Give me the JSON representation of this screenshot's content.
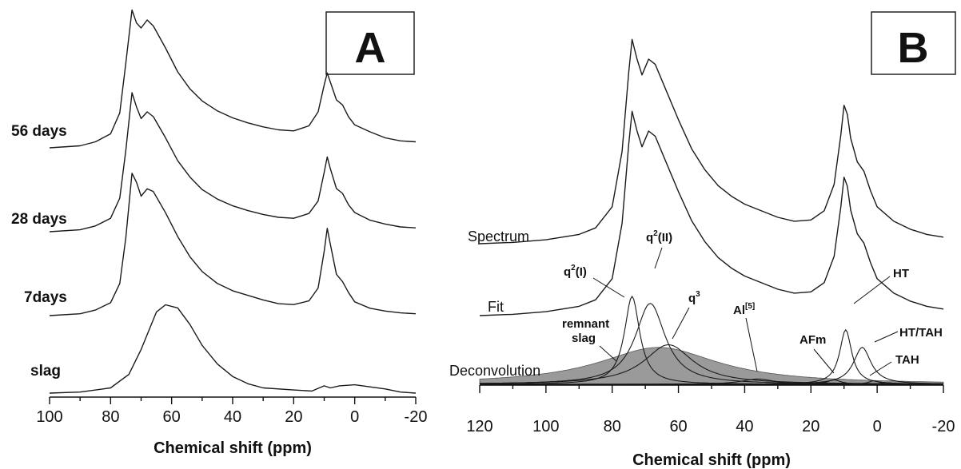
{
  "chart_data": [
    {
      "panel": "A",
      "type": "line",
      "xlabel": "Chemical shift (ppm)",
      "xlim": [
        100,
        -20
      ],
      "xticks": [
        100,
        80,
        60,
        40,
        20,
        0,
        -20
      ],
      "series": [
        {
          "name": "slag",
          "points": [
            [
              100,
              0.0
            ],
            [
              90,
              0.01
            ],
            [
              80,
              0.05
            ],
            [
              74,
              0.18
            ],
            [
              70,
              0.42
            ],
            [
              65,
              0.78
            ],
            [
              62,
              0.85
            ],
            [
              58,
              0.82
            ],
            [
              54,
              0.66
            ],
            [
              50,
              0.46
            ],
            [
              45,
              0.28
            ],
            [
              40,
              0.16
            ],
            [
              35,
              0.09
            ],
            [
              30,
              0.05
            ],
            [
              20,
              0.03
            ],
            [
              14,
              0.02
            ],
            [
              10,
              0.07
            ],
            [
              8,
              0.05
            ],
            [
              5,
              0.07
            ],
            [
              0,
              0.08
            ],
            [
              -5,
              0.06
            ],
            [
              -10,
              0.04
            ],
            [
              -15,
              0.01
            ],
            [
              -20,
              0.0
            ]
          ]
        },
        {
          "name": "7days",
          "points": [
            [
              100,
              0.0
            ],
            [
              90,
              0.02
            ],
            [
              85,
              0.06
            ],
            [
              80,
              0.14
            ],
            [
              77,
              0.35
            ],
            [
              75,
              0.85
            ],
            [
              73,
              1.55
            ],
            [
              71.5,
              1.45
            ],
            [
              70,
              1.3
            ],
            [
              68,
              1.38
            ],
            [
              66,
              1.35
            ],
            [
              62,
              1.12
            ],
            [
              58,
              0.86
            ],
            [
              54,
              0.64
            ],
            [
              50,
              0.48
            ],
            [
              45,
              0.35
            ],
            [
              40,
              0.27
            ],
            [
              35,
              0.22
            ],
            [
              30,
              0.17
            ],
            [
              25,
              0.13
            ],
            [
              20,
              0.12
            ],
            [
              15,
              0.16
            ],
            [
              12,
              0.3
            ],
            [
              10,
              0.7
            ],
            [
              9,
              0.95
            ],
            [
              8,
              0.78
            ],
            [
              6,
              0.45
            ],
            [
              4,
              0.37
            ],
            [
              2,
              0.25
            ],
            [
              0,
              0.15
            ],
            [
              -5,
              0.08
            ],
            [
              -10,
              0.05
            ],
            [
              -15,
              0.03
            ],
            [
              -20,
              0.02
            ]
          ]
        },
        {
          "name": "28 days",
          "points": [
            [
              100,
              0.0
            ],
            [
              90,
              0.02
            ],
            [
              85,
              0.06
            ],
            [
              80,
              0.14
            ],
            [
              77,
              0.35
            ],
            [
              75,
              0.85
            ],
            [
              73,
              1.45
            ],
            [
              71.5,
              1.3
            ],
            [
              70,
              1.18
            ],
            [
              68,
              1.25
            ],
            [
              66,
              1.2
            ],
            [
              62,
              0.98
            ],
            [
              58,
              0.74
            ],
            [
              54,
              0.57
            ],
            [
              50,
              0.44
            ],
            [
              45,
              0.34
            ],
            [
              40,
              0.27
            ],
            [
              35,
              0.22
            ],
            [
              30,
              0.18
            ],
            [
              25,
              0.15
            ],
            [
              20,
              0.14
            ],
            [
              15,
              0.19
            ],
            [
              12,
              0.32
            ],
            [
              10,
              0.62
            ],
            [
              9,
              0.78
            ],
            [
              8,
              0.66
            ],
            [
              6,
              0.45
            ],
            [
              4,
              0.4
            ],
            [
              2,
              0.28
            ],
            [
              0,
              0.2
            ],
            [
              -5,
              0.12
            ],
            [
              -10,
              0.08
            ],
            [
              -15,
              0.05
            ],
            [
              -20,
              0.04
            ]
          ]
        },
        {
          "name": "56 days",
          "points": [
            [
              100,
              0.0
            ],
            [
              90,
              0.02
            ],
            [
              85,
              0.06
            ],
            [
              80,
              0.14
            ],
            [
              77,
              0.35
            ],
            [
              75,
              0.85
            ],
            [
              73,
              1.38
            ],
            [
              71.5,
              1.25
            ],
            [
              70,
              1.2
            ],
            [
              68,
              1.28
            ],
            [
              66,
              1.22
            ],
            [
              62,
              1.0
            ],
            [
              58,
              0.76
            ],
            [
              54,
              0.59
            ],
            [
              50,
              0.47
            ],
            [
              45,
              0.37
            ],
            [
              40,
              0.3
            ],
            [
              35,
              0.25
            ],
            [
              30,
              0.21
            ],
            [
              25,
              0.18
            ],
            [
              20,
              0.17
            ],
            [
              15,
              0.22
            ],
            [
              12,
              0.36
            ],
            [
              10,
              0.63
            ],
            [
              9,
              0.75
            ],
            [
              8,
              0.66
            ],
            [
              6,
              0.48
            ],
            [
              4,
              0.43
            ],
            [
              2,
              0.31
            ],
            [
              0,
              0.23
            ],
            [
              -5,
              0.16
            ],
            [
              -10,
              0.1
            ],
            [
              -15,
              0.07
            ],
            [
              -20,
              0.06
            ]
          ]
        }
      ],
      "panel_label": "A"
    },
    {
      "panel": "B",
      "type": "line",
      "xlabel": "Chemical shift (ppm)",
      "xlim": [
        120,
        -20
      ],
      "xticks": [
        120,
        100,
        80,
        60,
        40,
        20,
        0,
        -20
      ],
      "series": [
        {
          "name": "Spectrum",
          "points": [
            [
              120,
              0.0
            ],
            [
              110,
              0.01
            ],
            [
              100,
              0.03
            ],
            [
              90,
              0.07
            ],
            [
              85,
              0.12
            ],
            [
              80,
              0.28
            ],
            [
              77,
              0.7
            ],
            [
              75,
              1.3
            ],
            [
              74,
              1.55
            ],
            [
              72.5,
              1.4
            ],
            [
              71,
              1.28
            ],
            [
              69,
              1.4
            ],
            [
              67,
              1.36
            ],
            [
              64,
              1.18
            ],
            [
              60,
              0.94
            ],
            [
              56,
              0.72
            ],
            [
              52,
              0.56
            ],
            [
              48,
              0.44
            ],
            [
              44,
              0.36
            ],
            [
              40,
              0.3
            ],
            [
              36,
              0.26
            ],
            [
              30,
              0.2
            ],
            [
              25,
              0.17
            ],
            [
              20,
              0.18
            ],
            [
              16,
              0.25
            ],
            [
              13,
              0.45
            ],
            [
              11,
              0.82
            ],
            [
              10,
              1.05
            ],
            [
              9,
              0.98
            ],
            [
              8,
              0.8
            ],
            [
              6,
              0.62
            ],
            [
              4,
              0.55
            ],
            [
              2,
              0.4
            ],
            [
              0,
              0.28
            ],
            [
              -5,
              0.17
            ],
            [
              -10,
              0.11
            ],
            [
              -15,
              0.07
            ],
            [
              -20,
              0.05
            ]
          ]
        },
        {
          "name": "Fit",
          "points": [
            [
              120,
              0.0
            ],
            [
              110,
              0.01
            ],
            [
              100,
              0.03
            ],
            [
              90,
              0.07
            ],
            [
              85,
              0.12
            ],
            [
              80,
              0.28
            ],
            [
              77,
              0.7
            ],
            [
              75,
              1.3
            ],
            [
              74,
              1.55
            ],
            [
              72.5,
              1.4
            ],
            [
              71,
              1.28
            ],
            [
              69,
              1.4
            ],
            [
              67,
              1.36
            ],
            [
              64,
              1.18
            ],
            [
              60,
              0.94
            ],
            [
              56,
              0.72
            ],
            [
              52,
              0.56
            ],
            [
              48,
              0.44
            ],
            [
              44,
              0.36
            ],
            [
              40,
              0.3
            ],
            [
              36,
              0.26
            ],
            [
              30,
              0.2
            ],
            [
              25,
              0.17
            ],
            [
              20,
              0.18
            ],
            [
              16,
              0.25
            ],
            [
              13,
              0.45
            ],
            [
              11,
              0.82
            ],
            [
              10,
              1.05
            ],
            [
              9,
              0.98
            ],
            [
              8,
              0.8
            ],
            [
              6,
              0.62
            ],
            [
              4,
              0.55
            ],
            [
              2,
              0.4
            ],
            [
              0,
              0.28
            ],
            [
              -5,
              0.17
            ],
            [
              -10,
              0.11
            ],
            [
              -15,
              0.07
            ],
            [
              -20,
              0.05
            ]
          ]
        }
      ],
      "components": [
        {
          "label": "remnant slag",
          "center": 66,
          "width": 22,
          "height": 0.42,
          "filled": true
        },
        {
          "label": "q2(I)",
          "center": 74,
          "width": 2.8,
          "height": 1.0,
          "filled": false
        },
        {
          "label": "q2(II)",
          "center": 68.5,
          "width": 5.5,
          "height": 0.92,
          "filled": false
        },
        {
          "label": "q3",
          "center": 63,
          "width": 9,
          "height": 0.45,
          "filled": false
        },
        {
          "label": "Al[5]",
          "center": 36,
          "width": 6,
          "height": 0.06,
          "filled": false
        },
        {
          "label": "AFm",
          "center": 13,
          "width": 2.5,
          "height": 0.05,
          "filled": false
        },
        {
          "label": "HT",
          "center": 9.5,
          "width": 2.2,
          "height": 0.62,
          "filled": false
        },
        {
          "label": "HT/TAH",
          "center": 4.5,
          "width": 3.2,
          "height": 0.42,
          "filled": false
        },
        {
          "label": "TAH",
          "center": 1,
          "width": 2,
          "height": 0.04,
          "filled": false
        }
      ],
      "annotations": {
        "spectrum": "Spectrum",
        "fit": "Fit",
        "deconvolution": "Deconvolution",
        "remnant_line1": "remnant",
        "remnant_line2": "slag",
        "q2I_base": "q",
        "q2I_sup": "2",
        "q2I_tail": "(I)",
        "q2II_base": "q",
        "q2II_sup": "2",
        "q2II_tail": "(II)",
        "q3_base": "q",
        "q3_sup": "3",
        "al5_base": "Al",
        "al5_sup": "[5]",
        "afm": "AFm",
        "ht": "HT",
        "httah": "HT/TAH",
        "tah": "TAH"
      },
      "panel_label": "B"
    }
  ]
}
